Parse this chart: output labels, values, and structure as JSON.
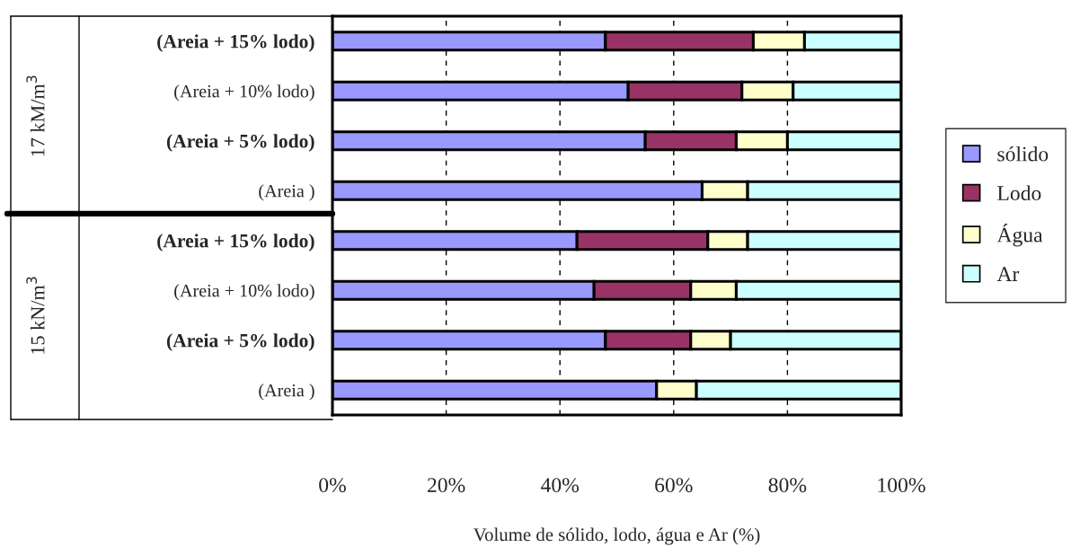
{
  "chart_data": {
    "type": "bar",
    "orientation": "horizontal",
    "stacked": true,
    "categories": [
      "(Areia + 15% lodo)",
      "(Areia + 10% lodo)",
      "(Areia + 5% lodo)",
      "(Areia )",
      "(Areia + 15% lodo)",
      "(Areia + 10% lodo)",
      "(Areia + 5% lodo)",
      "(Areia )"
    ],
    "series": [
      {
        "name": "sólido",
        "color": "#9999ff",
        "values": [
          48,
          52,
          55,
          65,
          43,
          46,
          48,
          57
        ]
      },
      {
        "name": "Lodo",
        "color": "#993366",
        "values": [
          26,
          20,
          16,
          null,
          23,
          17,
          15,
          null
        ]
      },
      {
        "name": "Água",
        "color": "#ffffcc",
        "values": [
          9,
          9,
          9,
          8,
          7,
          8,
          7,
          7
        ]
      },
      {
        "name": "Ar",
        "color": "#ccffff",
        "values": [
          17,
          19,
          20,
          27,
          27,
          29,
          30,
          36
        ]
      }
    ],
    "xlim": [
      0,
      100
    ],
    "xticks": [
      {
        "value": 0,
        "label": "0%"
      },
      {
        "value": 20,
        "label": "20%"
      },
      {
        "value": 40,
        "label": "40%"
      },
      {
        "value": 60,
        "label": "60%"
      },
      {
        "value": 80,
        "label": "80%"
      },
      {
        "value": 100,
        "label": "100%"
      }
    ],
    "xlabel": "Volume de sólido, lodo, água e Ar (%)",
    "annotations": [
      "17 kM/m$^{3}$",
      "15 kN/m$^{3}$"
    ],
    "grid": "x",
    "legend": "right"
  }
}
